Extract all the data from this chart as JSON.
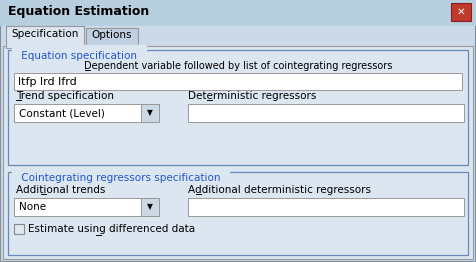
{
  "title": "Equation Estimation",
  "close_btn_color": "#c0392b",
  "close_btn_x_color": "#ffffff",
  "bg_color": "#ccd9e8",
  "title_bar_color": "#b8cfe0",
  "tab_active": "Specification",
  "tab_inactive": "Options",
  "section1_label": "Equation specification",
  "section1_desc": "Dependent variable followed by list of cointegrating regressors",
  "section1_input": "ltfp lrd lfrd",
  "trend_label": "Trend specification",
  "trend_value": "Constant (Level)",
  "determ_label": "Deterministic regressors",
  "section2_label": "Cointegrating regressors specification",
  "addl_trends_label": "Additional trends",
  "addl_trends_value": "None",
  "addl_determ_label": "Additional deterministic regressors",
  "checkbox_label": "Estimate using differenced data",
  "section_label_color": "#2255cc",
  "text_color": "#000000",
  "input_bg": "#ffffff",
  "input_border": "#999999",
  "section_border": "#6688bb",
  "tab_bg_inactive": "#c0d0e0",
  "content_bg": "#dce6f1",
  "figw": 4.76,
  "figh": 2.62,
  "dpi": 100
}
